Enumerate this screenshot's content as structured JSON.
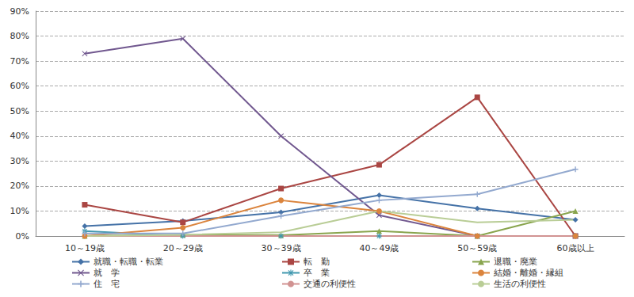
{
  "chart_data": {
    "type": "line",
    "categories": [
      "10～19歳",
      "20～29歳",
      "30～39歳",
      "40～49歳",
      "50～59歳",
      "60歳以上"
    ],
    "ylim": [
      0,
      90
    ],
    "yticks": [
      {
        "value": 0,
        "label": "0%"
      },
      {
        "value": 10,
        "label": "10%"
      },
      {
        "value": 20,
        "label": "20%"
      },
      {
        "value": 30,
        "label": "30%"
      },
      {
        "value": 40,
        "label": "40%"
      },
      {
        "value": 50,
        "label": "50%"
      },
      {
        "value": 60,
        "label": "60%"
      },
      {
        "value": 70,
        "label": "70%"
      },
      {
        "value": 80,
        "label": "80%"
      },
      {
        "value": 90,
        "label": "90%"
      }
    ],
    "grid": true,
    "legend": "bottom",
    "series": [
      {
        "name": "就職・転職・転業",
        "color": "#4572a7",
        "marker": "diamond",
        "values": [
          4,
          6,
          9.5,
          16.3,
          11,
          6.5
        ]
      },
      {
        "name": "転　勤",
        "color": "#aa4643",
        "marker": "square",
        "values": [
          12.5,
          5.5,
          19,
          28.5,
          55.5,
          0
        ]
      },
      {
        "name": "退職・廃業",
        "color": "#89a54e",
        "marker": "triangle",
        "values": [
          0,
          0.5,
          0.3,
          2,
          0,
          10
        ]
      },
      {
        "name": "就　学",
        "color": "#71588f",
        "marker": "x",
        "values": [
          73,
          79,
          40,
          8.3,
          0,
          0
        ]
      },
      {
        "name": "卒　業",
        "color": "#4198af",
        "marker": "star",
        "values": [
          2,
          0,
          0,
          0,
          0,
          0
        ]
      },
      {
        "name": "結婚・離婚・縁組",
        "color": "#db843d",
        "marker": "circle",
        "values": [
          0,
          3.3,
          14.3,
          10,
          0,
          0
        ]
      },
      {
        "name": "住　宅",
        "color": "#93a9cf",
        "marker": "plus",
        "values": [
          1,
          1,
          8,
          14.3,
          16.7,
          26.7
        ]
      },
      {
        "name": "交通の利便性",
        "color": "#d19392",
        "marker": "none",
        "values": [
          0,
          0,
          0,
          0,
          0,
          0
        ]
      },
      {
        "name": "生活の利便性",
        "color": "#b9cd96",
        "marker": "none",
        "values": [
          0,
          0.5,
          1.5,
          10,
          5.5,
          6.5
        ]
      }
    ]
  }
}
